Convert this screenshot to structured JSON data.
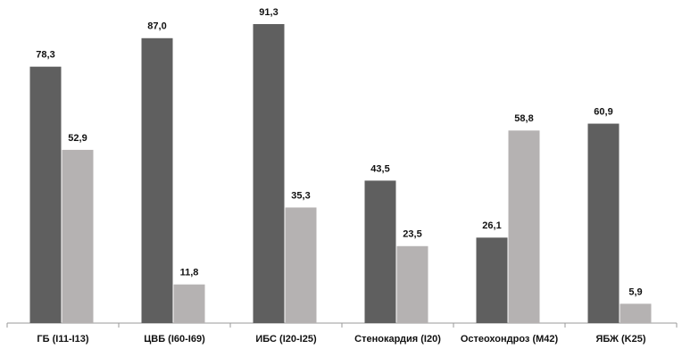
{
  "chart_data": {
    "type": "bar",
    "categories": [
      "ГБ (I11-I13)",
      "ЦВБ (I60-I69)",
      "ИБС (I20-I25)",
      "Стенокардия (I20)",
      "Остеохондроз (M42)",
      "ЯБЖ (K25)"
    ],
    "series": [
      {
        "color": "#5f5f5f",
        "values": [
          78.3,
          87.0,
          91.3,
          43.5,
          26.1,
          60.9
        ],
        "value_labels": [
          "78,3",
          "87,0",
          "91,3",
          "43,5",
          "26,1",
          "60,9"
        ]
      },
      {
        "color": "#b5b2b2",
        "values": [
          52.9,
          11.8,
          35.3,
          23.5,
          58.8,
          5.9
        ],
        "value_labels": [
          "52,9",
          "11,8",
          "35,3",
          "23,5",
          "58,8",
          "5,9"
        ]
      }
    ]
  }
}
